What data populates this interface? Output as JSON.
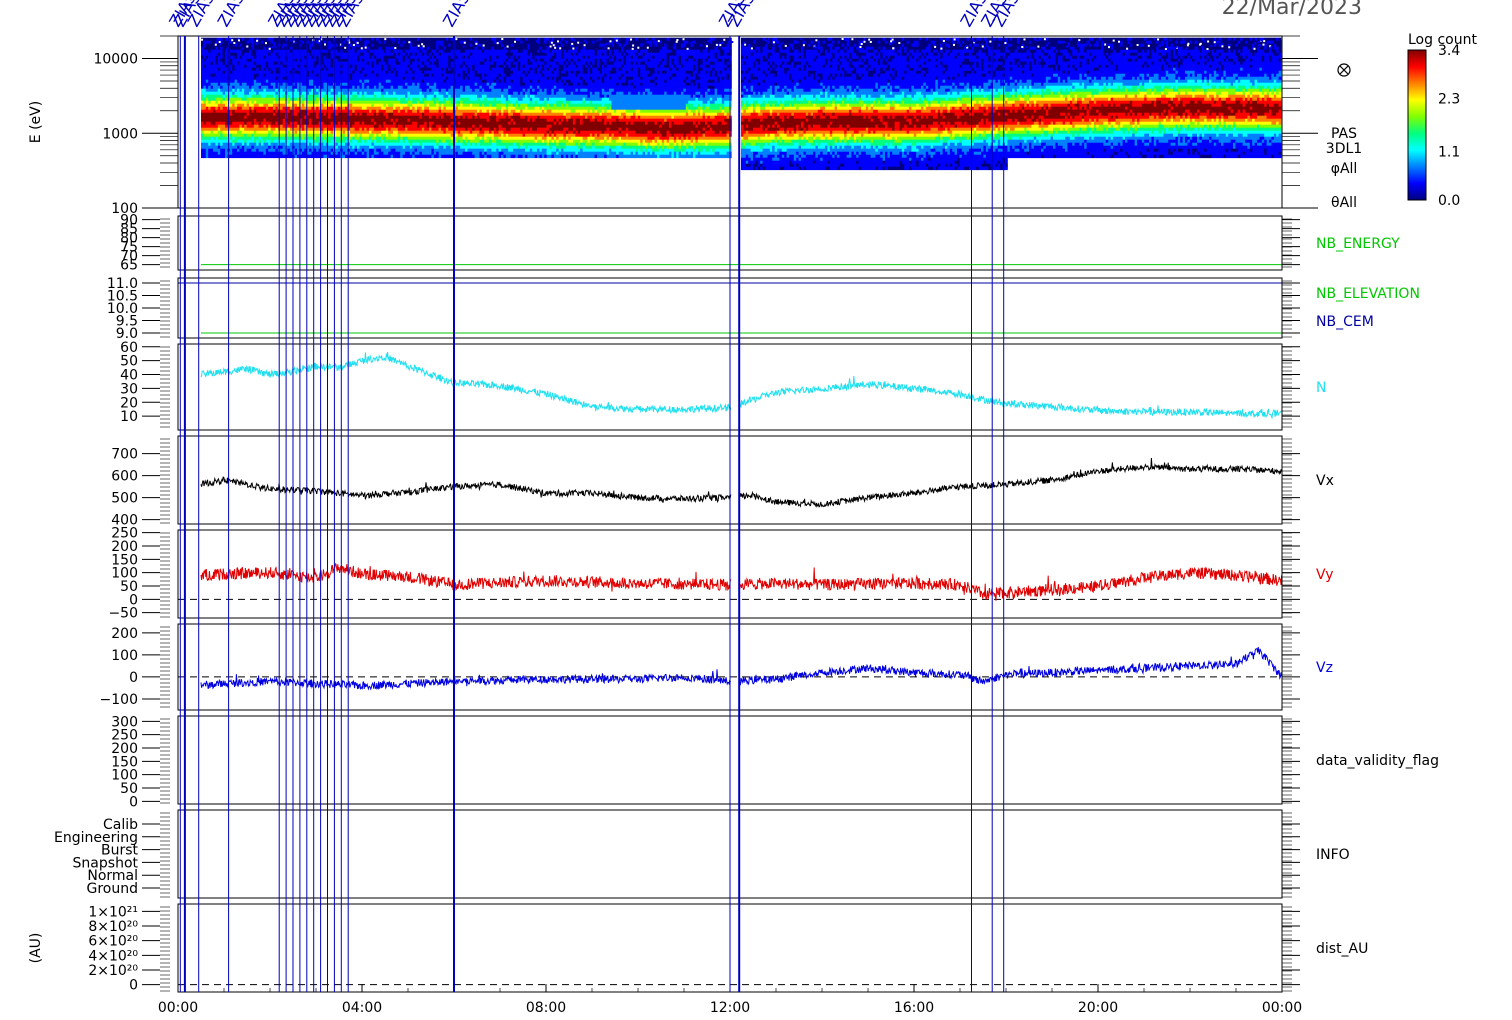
{
  "header": {
    "date": "22/Mar/2023",
    "event_label": "ZIAS"
  },
  "time_axis": {
    "ticks": [
      "00:00",
      "04:00",
      "08:00",
      "12:00",
      "16:00",
      "20:00",
      "00:00"
    ],
    "hours": [
      0,
      4,
      8,
      12,
      16,
      20,
      24
    ]
  },
  "colorbar": {
    "title": "Log count",
    "ticks": [
      "3.4",
      "2.3",
      "1.1",
      "0.0"
    ],
    "values": [
      3.4,
      2.3,
      1.1,
      0.0
    ],
    "colors": [
      "#00007f",
      "#0000ff",
      "#0080ff",
      "#00ffff",
      "#00ff80",
      "#80ff00",
      "#ffff00",
      "#ff8000",
      "#ff0000",
      "#800000"
    ]
  },
  "colors": {
    "green": "#00c800",
    "navy": "#0000a0",
    "cyan": "#20e0f0",
    "black": "#000000",
    "red": "#e00000",
    "blue": "#0000e0",
    "marker": "#0000c0"
  },
  "chart_data": [
    {
      "type": "heatmap",
      "name": "spectrogram",
      "ylabel": "E (eV)",
      "log_y": true,
      "ylim": [
        100,
        20000
      ],
      "yticks": [
        "10000",
        "1000",
        "100"
      ],
      "ytick_values": [
        10000,
        1000,
        100
      ],
      "right_labels": [
        "PAS",
        "3DL1",
        "φAll",
        "θAll"
      ],
      "peak_energy_eV": {
        "hours": [
          0.5,
          2,
          4,
          6,
          8,
          9.5,
          10.5,
          12,
          12.5,
          14,
          16,
          18,
          20,
          22,
          24
        ],
        "values": [
          1700,
          1700,
          1600,
          1500,
          1350,
          1300,
          1200,
          1300,
          1400,
          1500,
          1500,
          1800,
          2100,
          2300,
          2200
        ]
      }
    },
    {
      "type": "line",
      "name": "NB_ENERGY",
      "right_label": "NB_ENERGY",
      "ylim": [
        62,
        92
      ],
      "yticks": [
        "90",
        "85",
        "80",
        "75",
        "70",
        "65"
      ],
      "ytick_values": [
        90,
        85,
        80,
        75,
        70,
        65
      ],
      "series": [
        {
          "x": [
            0.5,
            24
          ],
          "values": [
            65,
            65
          ]
        }
      ]
    },
    {
      "type": "line",
      "name": "NB_ELEVATION",
      "right_labels": [
        "NB_ELEVATION",
        "NB_CEM"
      ],
      "ylim": [
        8.8,
        11.2
      ],
      "yticks": [
        "11.0",
        "10.5",
        "10.0",
        "9.5",
        "9.0"
      ],
      "ytick_values": [
        11.0,
        10.5,
        10.0,
        9.5,
        9.0
      ],
      "series": [
        {
          "x": [
            0,
            24
          ],
          "values": [
            11.0,
            11.0
          ]
        },
        {
          "x": [
            0.5,
            24
          ],
          "values": [
            9.0,
            9.0
          ]
        }
      ]
    },
    {
      "type": "line",
      "name": "N",
      "right_label": "N",
      "ylim": [
        0,
        62
      ],
      "yticks": [
        "60",
        "50",
        "40",
        "30",
        "20",
        "10"
      ],
      "ytick_values": [
        60,
        50,
        40,
        30,
        20,
        10
      ],
      "series": [
        {
          "x": [
            0.5,
            1.0,
            1.5,
            2.0,
            2.5,
            3.0,
            3.5,
            4.0,
            4.5,
            5.0,
            5.5,
            6.0,
            7.0,
            8.0,
            9.0,
            10.0,
            11.0,
            12.0,
            12.5,
            13.0,
            14.0,
            15.0,
            16.0,
            17.0,
            17.5,
            18.0,
            19.0,
            20.0,
            21.0,
            22.0,
            23.0,
            24.0
          ],
          "values": [
            40,
            42,
            44,
            40,
            42,
            46,
            45,
            50,
            53,
            46,
            40,
            34,
            32,
            26,
            17,
            15,
            15,
            16,
            22,
            27,
            30,
            33,
            30,
            26,
            22,
            19,
            17,
            14,
            13,
            13,
            12,
            12
          ],
          "noise": 2.5
        }
      ]
    },
    {
      "type": "line",
      "name": "Vx",
      "right_label": "Vx",
      "ylim": [
        380,
        780
      ],
      "yticks": [
        "700",
        "600",
        "500",
        "400"
      ],
      "ytick_values": [
        700,
        600,
        500,
        400
      ],
      "series": [
        {
          "x": [
            0.5,
            1.0,
            2.0,
            3.0,
            4.0,
            5.0,
            6.0,
            7.0,
            8.0,
            9.0,
            10.0,
            11.0,
            12.0,
            12.5,
            13.0,
            14.0,
            15.0,
            16.0,
            17.0,
            18.0,
            19.0,
            20.0,
            21.0,
            22.0,
            23.0,
            24.0
          ],
          "values": [
            560,
            580,
            540,
            530,
            510,
            525,
            550,
            560,
            520,
            520,
            500,
            495,
            500,
            510,
            480,
            470,
            500,
            520,
            550,
            560,
            580,
            620,
            640,
            630,
            630,
            620
          ],
          "noise": 14
        }
      ]
    },
    {
      "type": "line",
      "name": "Vy",
      "right_label": "Vy",
      "ylim": [
        -70,
        260
      ],
      "yticks": [
        "250",
        "200",
        "150",
        "100",
        "50",
        "0",
        "−50"
      ],
      "ytick_values": [
        250,
        200,
        150,
        100,
        50,
        0,
        -50
      ],
      "zero_line": 0,
      "series": [
        {
          "x": [
            0.5,
            1.0,
            2.0,
            3.0,
            3.5,
            4.0,
            5.0,
            6.0,
            8.0,
            10.0,
            12.0,
            13.0,
            14.0,
            16.0,
            17.0,
            17.5,
            18.0,
            19.0,
            20.0,
            21.0,
            22.0,
            23.0,
            24.0
          ],
          "values": [
            90,
            95,
            100,
            80,
            120,
            95,
            85,
            55,
            70,
            60,
            55,
            60,
            55,
            60,
            55,
            20,
            25,
            35,
            50,
            80,
            100,
            90,
            70
          ],
          "noise": 22
        }
      ]
    },
    {
      "type": "line",
      "name": "Vz",
      "right_label": "Vz",
      "ylim": [
        -150,
        240
      ],
      "yticks": [
        "200",
        "100",
        "0",
        "−100"
      ],
      "ytick_values": [
        200,
        100,
        0,
        -100
      ],
      "zero_line": 0,
      "series": [
        {
          "x": [
            0.5,
            1.0,
            2.0,
            3.0,
            4.0,
            5.0,
            6.0,
            8.0,
            10.0,
            11.0,
            12.0,
            13.0,
            14.0,
            15.0,
            16.0,
            17.0,
            17.5,
            18.0,
            19.0,
            20.0,
            21.0,
            22.0,
            23.0,
            23.5,
            24.0
          ],
          "values": [
            -40,
            -30,
            -20,
            -30,
            -40,
            -30,
            -20,
            -10,
            -10,
            0,
            -20,
            -10,
            20,
            40,
            20,
            10,
            -20,
            10,
            20,
            30,
            40,
            50,
            60,
            120,
            0
          ],
          "noise": 18
        }
      ]
    },
    {
      "type": "line",
      "name": "data_validity_flag",
      "right_label": "data_validity_flag",
      "ylim": [
        -10,
        320
      ],
      "yticks": [
        "300",
        "250",
        "200",
        "150",
        "100",
        "50",
        "0"
      ],
      "ytick_values": [
        300,
        250,
        200,
        150,
        100,
        50,
        0
      ],
      "series": []
    },
    {
      "type": "line",
      "name": "INFO",
      "right_label": "INFO",
      "yticks": [
        "Calib",
        "Engineering",
        "Burst",
        "Snapshot",
        "Normal",
        "Ground"
      ],
      "series": []
    },
    {
      "type": "line",
      "name": "dist_AU",
      "right_label": "dist_AU",
      "ylabel": "(AU)",
      "ylim": [
        -1e+20,
        1.1e+21
      ],
      "yticks": [
        "1×10²¹",
        "8×10²⁰",
        "6×10²⁰",
        "4×10²⁰",
        "2×10²⁰",
        "0"
      ],
      "ytick_values": [
        1e+21,
        8e+20,
        6e+20,
        4e+20,
        2e+20,
        0
      ],
      "zero_line": 0,
      "series": []
    }
  ],
  "event_lines": {
    "hours": [
      0.05,
      0.15,
      0.45,
      1.1,
      2.2,
      2.35,
      2.5,
      2.65,
      2.8,
      2.95,
      3.1,
      3.25,
      3.4,
      3.55,
      3.7,
      6.0,
      12.0,
      12.2,
      17.25,
      17.7,
      17.95
    ]
  }
}
